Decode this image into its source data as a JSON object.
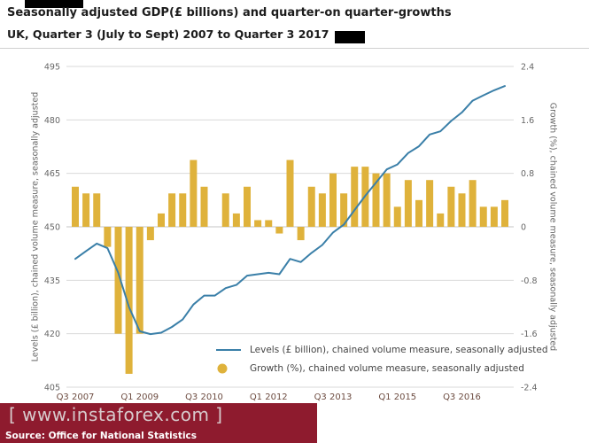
{
  "header": {
    "title": "Seasonally adjusted GDP(£ billions) and quarter-on quarter-growths",
    "subtitle": "UK, Quarter 3 (July to Sept) 2007 to Quarter 3 2017"
  },
  "watermark": {
    "text": "[ www.instaforex.com ]"
  },
  "source": {
    "text": "Source: Office for National Statistics"
  },
  "colors": {
    "bar": "#dfb23b",
    "line": "#3a7fa8",
    "banner": "#8e1b2e",
    "watermark_text": "#d8cbcd",
    "grid": "#dadada",
    "baseline": "#c4c4c4",
    "axis_text": "#666666",
    "x_label": "#6d4c41"
  },
  "chart_data": {
    "type": "combo",
    "title": "Seasonally adjusted GDP(£ billions) and quarter-on quarter-growths",
    "subtitle": "UK, Quarter 3 (July to Sept) 2007 to Quarter 3 2017",
    "grid": true,
    "legend_position": "bottom-inside",
    "x_quarters": [
      "2007 Q3",
      "2007 Q4",
      "2008 Q1",
      "2008 Q2",
      "2008 Q3",
      "2008 Q4",
      "2009 Q1",
      "2009 Q2",
      "2009 Q3",
      "2009 Q4",
      "2010 Q1",
      "2010 Q2",
      "2010 Q3",
      "2010 Q4",
      "2011 Q1",
      "2011 Q2",
      "2011 Q3",
      "2011 Q4",
      "2012 Q1",
      "2012 Q2",
      "2012 Q3",
      "2012 Q4",
      "2013 Q1",
      "2013 Q2",
      "2013 Q3",
      "2013 Q4",
      "2014 Q1",
      "2014 Q2",
      "2014 Q3",
      "2014 Q4",
      "2015 Q1",
      "2015 Q2",
      "2015 Q3",
      "2015 Q4",
      "2016 Q1",
      "2016 Q2",
      "2016 Q3",
      "2016 Q4",
      "2017 Q1",
      "2017 Q2",
      "2017 Q3"
    ],
    "x_tick_labels": [
      {
        "index": 0,
        "label": "Q3 2007"
      },
      {
        "index": 6,
        "label": "Q1 2009"
      },
      {
        "index": 12,
        "label": "Q3 2010"
      },
      {
        "index": 18,
        "label": "Q1 2012"
      },
      {
        "index": 24,
        "label": "Q3 2013"
      },
      {
        "index": 30,
        "label": "Q1 2015"
      },
      {
        "index": 36,
        "label": "Q3 2016"
      }
    ],
    "series": [
      {
        "name": "Levels (£ billion), chained volume measure, seasonally adjusted",
        "kind": "line",
        "axis": "left",
        "values": [
          441.0,
          443.2,
          445.3,
          444.0,
          437.1,
          427.5,
          420.7,
          419.9,
          420.3,
          421.9,
          424.0,
          428.2,
          430.7,
          430.7,
          432.8,
          433.7,
          436.3,
          436.7,
          437.1,
          436.7,
          441.0,
          440.1,
          442.7,
          444.9,
          448.4,
          450.6,
          454.7,
          458.7,
          462.4,
          466.1,
          467.5,
          470.7,
          472.6,
          475.9,
          476.8,
          479.7,
          482.1,
          485.4,
          486.9,
          488.3,
          489.5
        ]
      },
      {
        "name": "Growth (%), chained volume measure, seasonally adjusted",
        "kind": "bar",
        "axis": "right",
        "values": [
          0.6,
          0.5,
          0.5,
          -0.3,
          -1.6,
          -2.2,
          -1.6,
          -0.2,
          0.2,
          0.5,
          0.5,
          1.0,
          0.6,
          0.0,
          0.5,
          0.2,
          0.6,
          0.1,
          0.1,
          -0.1,
          1.0,
          -0.2,
          0.6,
          0.5,
          0.8,
          0.5,
          0.9,
          0.9,
          0.8,
          0.8,
          0.3,
          0.7,
          0.4,
          0.7,
          0.2,
          0.6,
          0.5,
          0.7,
          0.3,
          0.3,
          0.4
        ]
      }
    ],
    "left_axis": {
      "label": "Levels (£ billion), chained volume measure, seasonally adjusted",
      "min": 405,
      "max": 495,
      "ticks": [
        495,
        480,
        465,
        450,
        435,
        420,
        405
      ],
      "baseline": 450
    },
    "right_axis": {
      "label": "Growth (%), chained volume measure, seasonally adjusted",
      "min": -2.4,
      "max": 2.4,
      "ticks": [
        2.4,
        1.6,
        0.8,
        0,
        -0.8,
        -1.6,
        -2.4
      ],
      "baseline": 0
    }
  }
}
